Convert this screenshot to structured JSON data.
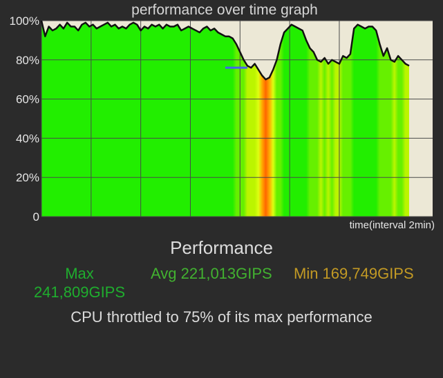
{
  "chart_data": {
    "type": "area",
    "title": "performance over time graph",
    "xlabel": "time(interval 2min)",
    "ylabel": "",
    "ylim": [
      0,
      100
    ],
    "xlim": [
      0,
      100
    ],
    "yticks": [
      "0",
      "20%",
      "40%",
      "60%",
      "80%",
      "100%"
    ],
    "ytick_values": [
      0,
      20,
      40,
      60,
      80,
      100
    ],
    "grid": true,
    "colors": {
      "background": "#ece8d6",
      "line": "#111111",
      "gridline": "#4a4a4a",
      "threshold": "#4466ee",
      "fill_high": "#22ee00",
      "fill_mid": "#ddff11",
      "fill_low": "#ff2200"
    },
    "x": [
      0,
      1,
      2,
      3,
      4,
      5,
      6,
      7,
      8,
      9,
      10,
      11,
      12,
      13,
      14,
      15,
      16,
      17,
      18,
      19,
      20,
      21,
      22,
      23,
      24,
      25,
      26,
      27,
      28,
      29,
      30,
      31,
      32,
      33,
      34,
      35,
      36,
      37,
      38,
      39,
      40,
      41,
      42,
      43,
      44,
      45,
      46,
      47,
      48,
      49,
      50,
      51,
      52,
      53,
      54,
      55,
      56,
      57,
      58,
      59,
      60,
      61,
      62,
      63,
      64,
      65,
      66,
      67,
      68,
      69,
      70,
      71,
      72,
      73,
      74,
      75,
      76,
      77,
      78,
      79,
      80,
      81,
      82,
      83,
      84,
      85,
      86,
      87,
      88,
      89,
      90,
      91,
      92,
      93,
      94,
      95,
      96,
      97,
      98,
      99,
      100
    ],
    "values": [
      100,
      92,
      97,
      95,
      96,
      98,
      96,
      99,
      97,
      97,
      95,
      98,
      99,
      97,
      98,
      96,
      97,
      98,
      99,
      97,
      98,
      96,
      97,
      96,
      98,
      99,
      98,
      95,
      97,
      96,
      98,
      97,
      98,
      96,
      98,
      97,
      97,
      98,
      95,
      96,
      97,
      96,
      95,
      94,
      96,
      97,
      95,
      96,
      94,
      93,
      92,
      92,
      91,
      88,
      84,
      80,
      77,
      76,
      78,
      75,
      72,
      70,
      71,
      75,
      80,
      88,
      94,
      96,
      98,
      97,
      96,
      95,
      90,
      86,
      84,
      80,
      79,
      81,
      78,
      80,
      79,
      78,
      82,
      81,
      83,
      96,
      98,
      97,
      96,
      97,
      97,
      95,
      88,
      82,
      86,
      80,
      79,
      82,
      80,
      78,
      77
    ],
    "threshold": {
      "value": 76,
      "x_start": 50,
      "x_end": 56
    },
    "summary": {
      "heading": "Performance",
      "max_label": "Max",
      "max_value": "241,809GIPS",
      "avg": "Avg 221,013GIPS",
      "min": "Min 169,749GIPS",
      "message": "CPU throttled to 75% of its max performance"
    }
  }
}
